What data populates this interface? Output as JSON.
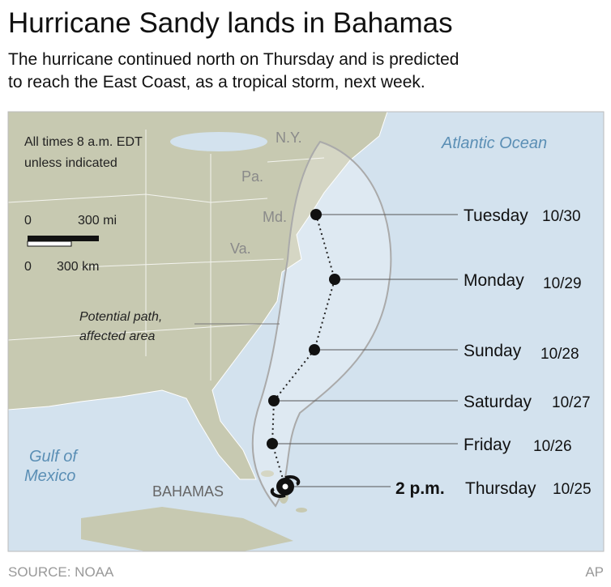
{
  "header": {
    "title": "Hurricane Sandy lands in Bahamas",
    "subtitle": [
      "The hurricane continued north on Thursday and is predicted",
      "to reach the East Coast, as a tropical storm, next week."
    ]
  },
  "map": {
    "note": [
      "All times 8 a.m. EDT",
      "unless indicated"
    ],
    "scale": {
      "mi_zero": "0",
      "mi_label": "300 mi",
      "km_zero": "0",
      "km_label": "300 km"
    },
    "area_label": [
      "Potential path,",
      "affected area"
    ],
    "places": [
      "N.Y.",
      "Pa.",
      "Md.",
      "Va.",
      "Atlantic Ocean",
      "Gulf of",
      "Mexico",
      "BAHAMAS"
    ],
    "track": [
      {
        "day": "Tuesday",
        "date": "10/30"
      },
      {
        "day": "Monday",
        "date": "10/29"
      },
      {
        "day": "Sunday",
        "date": "10/28"
      },
      {
        "day": "Saturday",
        "date": "10/27"
      },
      {
        "day": "Friday",
        "date": "10/26"
      },
      {
        "time": "2 p.m.",
        "day": "Thursday",
        "date": "10/25"
      }
    ]
  },
  "footer": {
    "source": "SOURCE: NOAA",
    "credit": "AP"
  }
}
